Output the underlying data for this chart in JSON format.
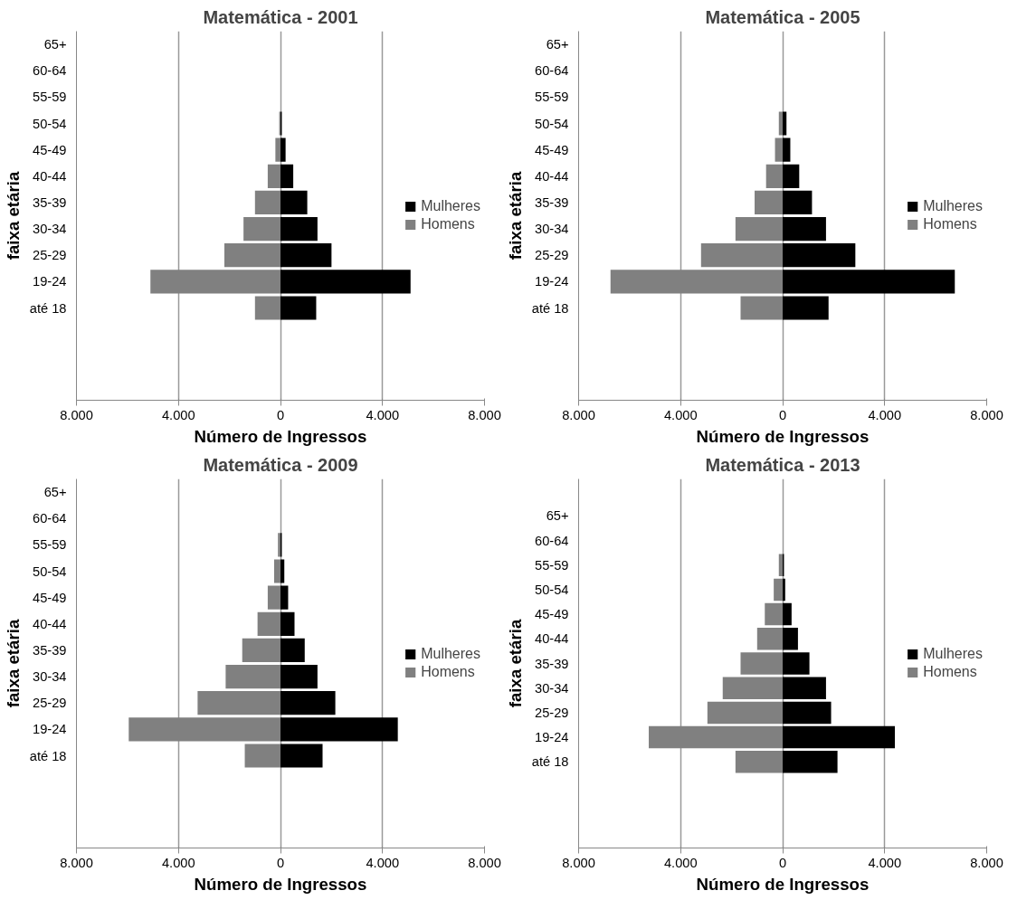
{
  "chart_data": [
    {
      "type": "bar",
      "orientation": "horizontal",
      "stacked": true,
      "title": "Matemática - 2001",
      "xlabel": "Número de Ingressos",
      "ylabel": "faixa etária",
      "categories": [
        "65+",
        "60-64",
        "55-59",
        "50-54",
        "45-49",
        "40-44",
        "35-39",
        "30-34",
        "25-29",
        "19-24",
        "até 18",
        null,
        null,
        null
      ],
      "series": [
        {
          "name": "Mulheres",
          "color": "#000000",
          "values": [
            0,
            0,
            0,
            50,
            200,
            500,
            1050,
            1450,
            2000,
            5100,
            1400,
            null,
            null,
            null
          ]
        },
        {
          "name": "Homens",
          "color": "#808080",
          "values": [
            0,
            0,
            0,
            -50,
            -200,
            -500,
            -1000,
            -1450,
            -2200,
            -5100,
            -1000,
            null,
            null,
            null
          ]
        }
      ],
      "xlim": [
        -8000,
        8000
      ],
      "xticks": [
        {
          "value": -8000,
          "label": "8.000"
        },
        {
          "value": -4000,
          "label": "4.000"
        },
        0,
        {
          "value": 4000,
          "label": "4.000"
        },
        {
          "value": 8000,
          "label": "8.000"
        }
      ],
      "grid": "x",
      "legend": "right"
    },
    {
      "type": "bar",
      "orientation": "horizontal",
      "stacked": true,
      "title": "Matemática - 2005",
      "xlabel": "Número de Ingressos",
      "ylabel": "faixa etária",
      "categories": [
        "65+",
        "60-64",
        "55-59",
        "50-54",
        "45-49",
        "40-44",
        "35-39",
        "30-34",
        "25-29",
        "19-24",
        "até 18",
        null,
        null,
        null
      ],
      "series": [
        {
          "name": "Mulheres",
          "color": "#000000",
          "values": [
            0,
            0,
            0,
            150,
            300,
            650,
            1150,
            1700,
            2850,
            6750,
            1800,
            null,
            null,
            null
          ]
        },
        {
          "name": "Homens",
          "color": "#808080",
          "values": [
            0,
            0,
            0,
            -150,
            -300,
            -650,
            -1100,
            -1850,
            -3200,
            -6750,
            -1650,
            null,
            null,
            null
          ]
        }
      ],
      "xlim": [
        -8000,
        8000
      ],
      "xticks": [
        {
          "value": -8000,
          "label": "8.000"
        },
        {
          "value": -4000,
          "label": "4.000"
        },
        0,
        {
          "value": 4000,
          "label": "4.000"
        },
        {
          "value": 8000,
          "label": "8.000"
        }
      ],
      "grid": "x",
      "legend": "right"
    },
    {
      "type": "bar",
      "orientation": "horizontal",
      "stacked": true,
      "title": "Matemática - 2009",
      "xlabel": "Número de Ingressos",
      "ylabel": "faixa etária",
      "categories": [
        "65+",
        "60-64",
        "55-59",
        "50-54",
        "45-49",
        "40-44",
        "35-39",
        "30-34",
        "25-29",
        "19-24",
        "até 18",
        null,
        null,
        null
      ],
      "series": [
        {
          "name": "Mulheres",
          "color": "#000000",
          "values": [
            0,
            0,
            50,
            150,
            300,
            550,
            950,
            1450,
            2150,
            4600,
            1650,
            null,
            null,
            null
          ]
        },
        {
          "name": "Homens",
          "color": "#808080",
          "values": [
            0,
            0,
            -100,
            -250,
            -500,
            -900,
            -1500,
            -2150,
            -3250,
            -5950,
            -1400,
            null,
            null,
            null
          ]
        }
      ],
      "xlim": [
        -8000,
        8000
      ],
      "xticks": [
        {
          "value": -8000,
          "label": "8.000"
        },
        {
          "value": -4000,
          "label": "4.000"
        },
        0,
        {
          "value": 4000,
          "label": "4.000"
        },
        {
          "value": 8000,
          "label": "8.000"
        }
      ],
      "grid": "x",
      "legend": "right"
    },
    {
      "type": "bar",
      "orientation": "horizontal",
      "stacked": true,
      "title": "Matemática - 2013",
      "xlabel": "Número de Ingressos",
      "ylabel": "faixa etária",
      "categories": [
        null,
        "65+",
        "60-64",
        "55-59",
        "50-54",
        "45-49",
        "40-44",
        "35-39",
        "30-34",
        "25-29",
        "19-24",
        "até 18",
        null,
        null,
        null
      ],
      "series": [
        {
          "name": "Mulheres",
          "color": "#000000",
          "values": [
            null,
            0,
            0,
            50,
            100,
            350,
            600,
            1050,
            1700,
            1900,
            4400,
            2150,
            null,
            null,
            null
          ]
        },
        {
          "name": "Homens",
          "color": "#808080",
          "values": [
            null,
            0,
            0,
            -150,
            -350,
            -700,
            -1000,
            -1650,
            -2350,
            -2950,
            -5250,
            -1850,
            null,
            null,
            null
          ]
        }
      ],
      "xlim": [
        -8000,
        8000
      ],
      "xticks": [
        {
          "value": -8000,
          "label": "8.000"
        },
        {
          "value": -4000,
          "label": "4.000"
        },
        0,
        {
          "value": 4000,
          "label": "4.000"
        },
        {
          "value": 8000,
          "label": "8.000"
        }
      ],
      "grid": "x",
      "legend": "right"
    }
  ]
}
